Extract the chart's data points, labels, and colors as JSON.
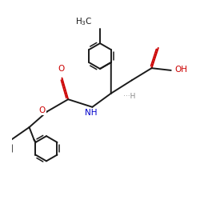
{
  "bg_color": "#ffffff",
  "line_color": "#1a1a1a",
  "red_color": "#cc0000",
  "blue_color": "#0000cc",
  "gray_color": "#888888",
  "figsize": [
    2.5,
    2.5
  ],
  "dpi": 100,
  "lw": 1.4,
  "lw_inner": 1.1,
  "xlim": [
    -2.5,
    5.5
  ],
  "ylim": [
    -4.5,
    4.5
  ]
}
